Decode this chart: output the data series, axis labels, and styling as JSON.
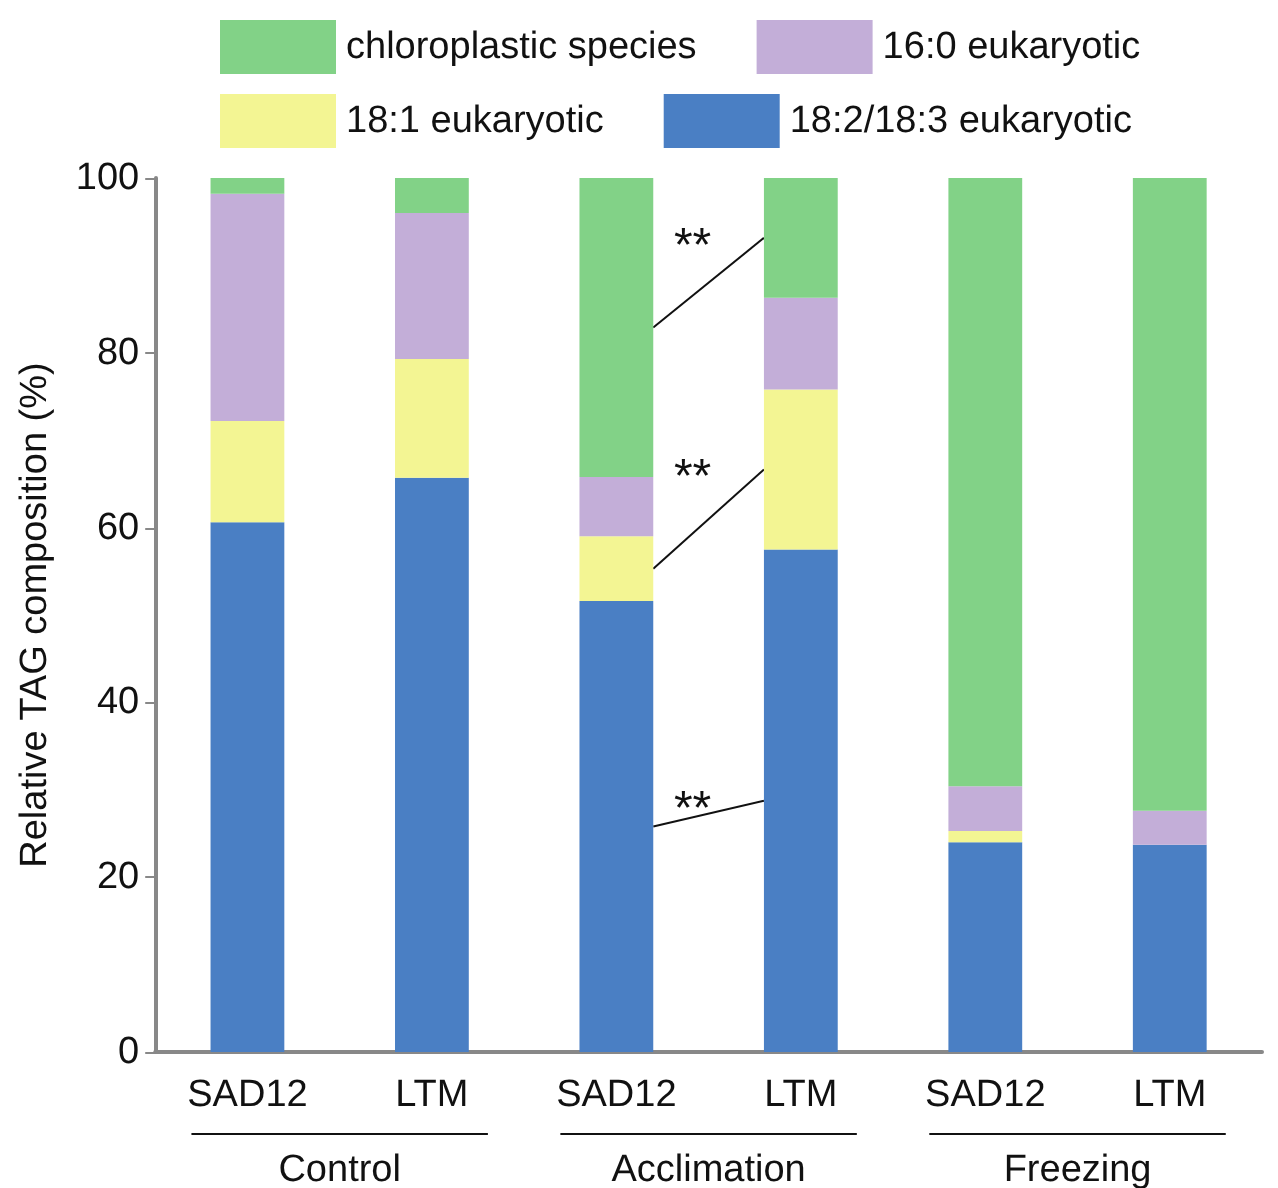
{
  "chart_data": {
    "type": "bar",
    "stacked": true,
    "ylabel": "Relative TAG composition (%)",
    "categories": [
      "SAD12",
      "LTM",
      "SAD12",
      "LTM",
      "SAD12",
      "LTM"
    ],
    "series": [
      {
        "name": "18:2/18:3 eukaryotic",
        "color": "#4a7fc4",
        "values": [
          60.6,
          65.7,
          51.6,
          57.5,
          24.0,
          23.7
        ]
      },
      {
        "name": "18:1 eukaryotic",
        "color": "#f3f593",
        "values": [
          11.6,
          13.6,
          7.4,
          18.3,
          1.3,
          0
        ]
      },
      {
        "name": "16:0 eukaryotic",
        "color": "#c3aed8",
        "values": [
          26.0,
          16.7,
          6.8,
          10.5,
          5.1,
          3.9
        ]
      },
      {
        "name": "chloroplastic species",
        "color": "#82d287",
        "values": [
          1.8,
          4.0,
          34.2,
          13.7,
          69.6,
          72.4
        ]
      }
    ],
    "ylim": [
      0,
      100
    ],
    "yticks": [
      0,
      20,
      40,
      60,
      80,
      100
    ],
    "grid": false,
    "legend": "top",
    "annotations": [
      "Control",
      "Acclimation",
      "Freezing",
      "**",
      "**",
      "**"
    ]
  }
}
